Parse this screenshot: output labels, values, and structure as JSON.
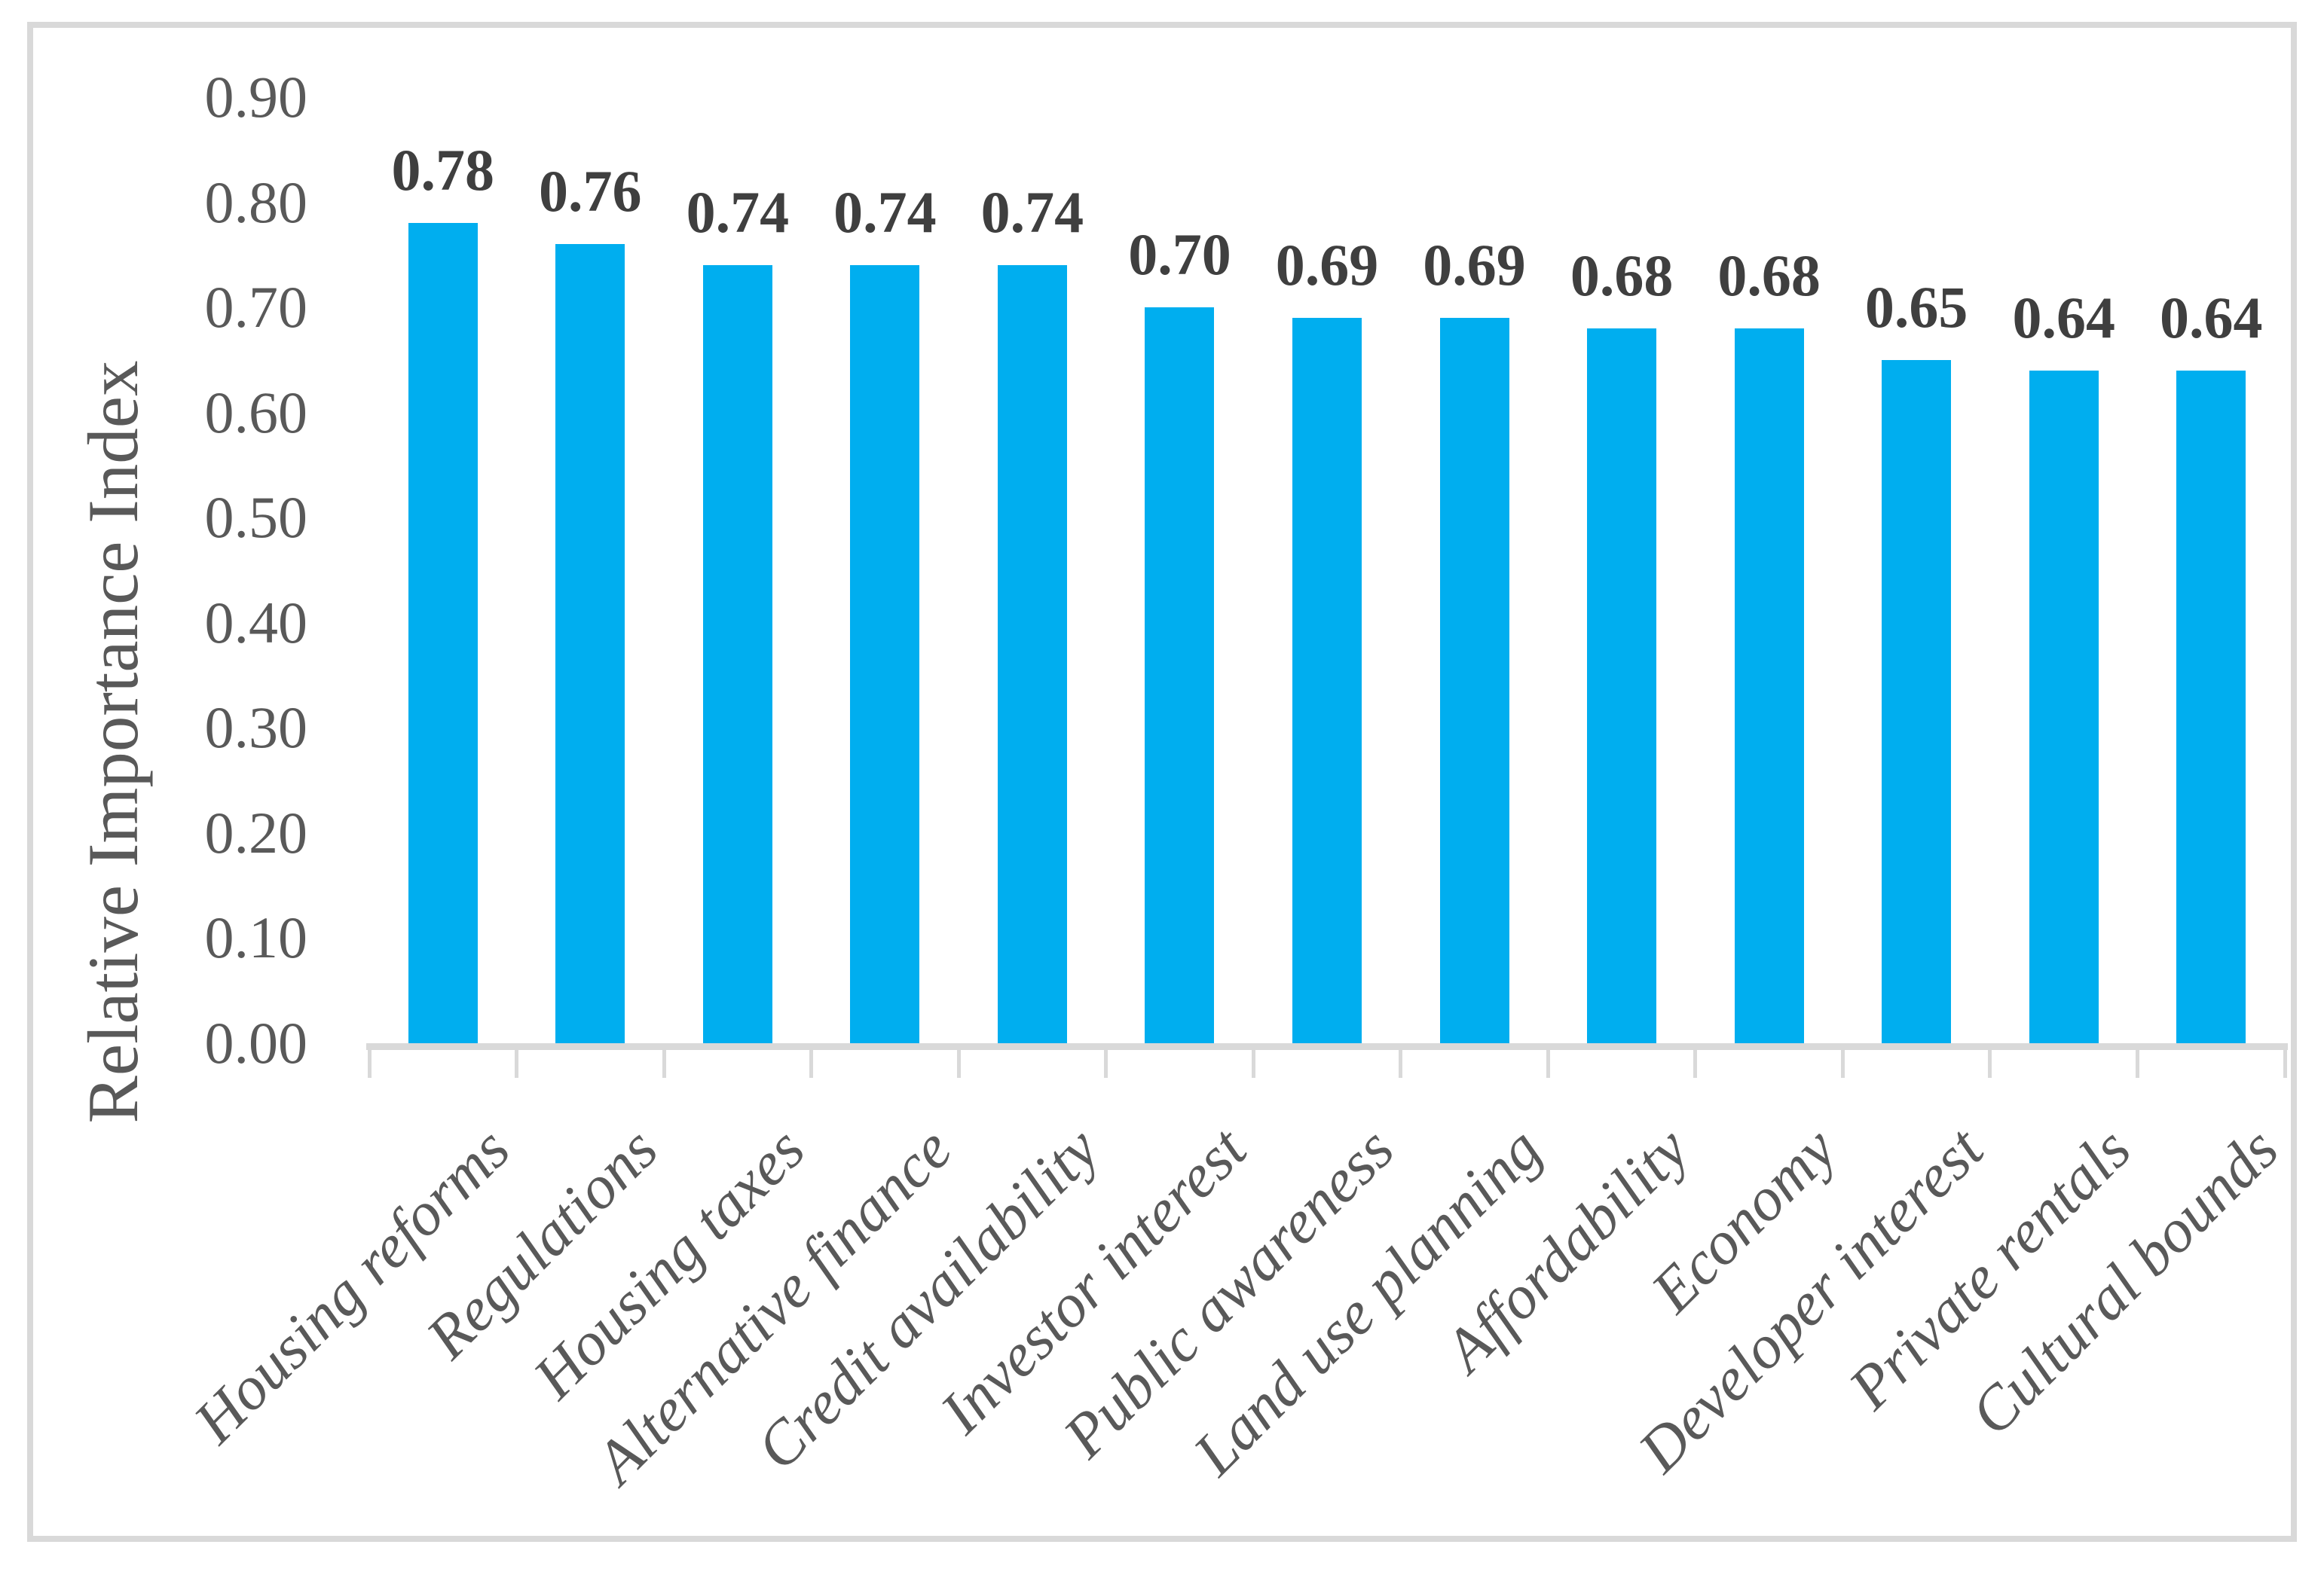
{
  "chart_data": {
    "type": "bar",
    "title": "",
    "ylabel": "Relative Importance Index",
    "xlabel": "",
    "categories": [
      "Housing reforms",
      "Regulations",
      "Housing taxes",
      "Alternative finance",
      "Credit availability",
      "Investor interest",
      "Public awareness",
      "Land use planning",
      "Affordability",
      "Economy",
      "Developer interest",
      "Private rentals",
      "Cultural bounds"
    ],
    "values": [
      0.78,
      0.76,
      0.74,
      0.74,
      0.74,
      0.7,
      0.69,
      0.69,
      0.68,
      0.68,
      0.65,
      0.64,
      0.64
    ],
    "data_labels": [
      "0.78",
      "0.76",
      "0.74",
      "0.74",
      "0.74",
      "0.70",
      "0.69",
      "0.69",
      "0.68",
      "0.68",
      "0.65",
      "0.64",
      "0.64"
    ],
    "y_tick_labels": [
      "0.00",
      "0.10",
      "0.20",
      "0.30",
      "0.40",
      "0.50",
      "0.60",
      "0.70",
      "0.80",
      "0.90"
    ],
    "ylim": [
      0.0,
      0.9
    ],
    "grid": "off",
    "legend": "none",
    "colors": {
      "bar": "#00AEEF",
      "axis_line": "#D9D9D9",
      "frame_border": "#D9D9D9",
      "tick_label": "#595959",
      "category_label": "#595959",
      "data_label": "#3F3F3F",
      "y_axis_title": "#595959"
    }
  }
}
